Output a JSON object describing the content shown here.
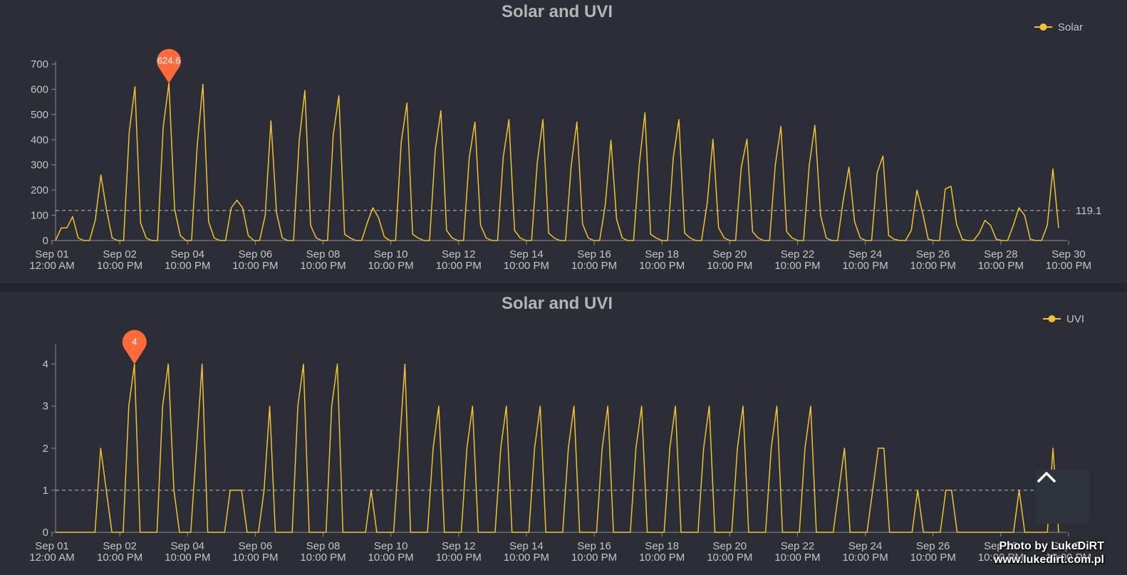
{
  "colors": {
    "line": "#f2c232",
    "marker": "#ff6a3d",
    "axis": "#8c8c8c",
    "mean": "#bdbdbd",
    "bg": "#2b2e36"
  },
  "watermark": {
    "line1": "Photo by LukeDiRT",
    "line2": "www.lukedirt.com.pl"
  },
  "chart_data": [
    {
      "type": "line",
      "title": "Solar and UVI",
      "legend": "top-right",
      "xlabel": "",
      "ylabel": "",
      "ylim": [
        0,
        700
      ],
      "y_ticks": [
        0,
        100,
        200,
        300,
        400,
        500,
        600,
        700
      ],
      "x_ticks": [
        {
          "l1": "Sep 01",
          "l2": "12:00 AM"
        },
        {
          "l1": "Sep 02",
          "l2": "10:00 PM"
        },
        {
          "l1": "Sep 04",
          "l2": "10:00 PM"
        },
        {
          "l1": "Sep 06",
          "l2": "10:00 PM"
        },
        {
          "l1": "Sep 08",
          "l2": "10:00 PM"
        },
        {
          "l1": "Sep 10",
          "l2": "10:00 PM"
        },
        {
          "l1": "Sep 12",
          "l2": "10:00 PM"
        },
        {
          "l1": "Sep 14",
          "l2": "10:00 PM"
        },
        {
          "l1": "Sep 16",
          "l2": "10:00 PM"
        },
        {
          "l1": "Sep 18",
          "l2": "10:00 PM"
        },
        {
          "l1": "Sep 20",
          "l2": "10:00 PM"
        },
        {
          "l1": "Sep 22",
          "l2": "10:00 PM"
        },
        {
          "l1": "Sep 24",
          "l2": "10:00 PM"
        },
        {
          "l1": "Sep 26",
          "l2": "10:00 PM"
        },
        {
          "l1": "Sep 28",
          "l2": "10:00 PM"
        },
        {
          "l1": "Sep 30",
          "l2": "10:00 PM"
        }
      ],
      "mean_line": 119.1,
      "mean_label": "119.1",
      "max_point": {
        "label": "624.6",
        "value": 624.6,
        "index": 20
      },
      "series": [
        {
          "name": "Solar",
          "values": [
            0,
            50,
            50,
            95,
            10,
            0,
            0,
            80,
            260,
            120,
            10,
            0,
            0,
            430,
            610,
            70,
            10,
            0,
            0,
            450,
            624.6,
            125,
            20,
            0,
            0,
            380,
            620,
            75,
            10,
            0,
            0,
            130,
            160,
            130,
            20,
            0,
            0,
            100,
            475,
            110,
            10,
            0,
            0,
            400,
            595,
            60,
            10,
            0,
            0,
            420,
            575,
            25,
            10,
            0,
            0,
            70,
            130,
            90,
            15,
            0,
            0,
            390,
            545,
            25,
            10,
            0,
            0,
            360,
            515,
            40,
            10,
            0,
            0,
            330,
            470,
            60,
            10,
            0,
            0,
            330,
            480,
            40,
            10,
            0,
            0,
            310,
            480,
            30,
            10,
            0,
            0,
            300,
            470,
            65,
            10,
            0,
            0,
            140,
            398,
            85,
            10,
            0,
            0,
            300,
            507,
            25,
            10,
            0,
            0,
            330,
            480,
            30,
            10,
            0,
            0,
            150,
            402,
            50,
            10,
            0,
            0,
            290,
            402,
            35,
            10,
            0,
            0,
            300,
            453,
            35,
            10,
            0,
            0,
            300,
            457,
            100,
            10,
            0,
            0,
            160,
            291,
            75,
            10,
            0,
            0,
            270,
            335,
            20,
            5,
            0,
            0,
            40,
            200,
            110,
            5,
            0,
            0,
            205,
            215,
            65,
            5,
            0,
            0,
            30,
            80,
            60,
            5,
            0,
            0,
            60,
            130,
            100,
            5,
            0,
            0,
            60,
            284,
            50
          ]
        }
      ]
    },
    {
      "type": "line",
      "title": "Solar and UVI",
      "legend": "top-right",
      "xlabel": "",
      "ylabel": "",
      "ylim": [
        0,
        4.4
      ],
      "y_ticks": [
        0,
        1,
        2,
        3,
        4
      ],
      "x_ticks": [
        {
          "l1": "Sep 01",
          "l2": "12:00 AM"
        },
        {
          "l1": "Sep 02",
          "l2": "10:00 PM"
        },
        {
          "l1": "Sep 04",
          "l2": "10:00 PM"
        },
        {
          "l1": "Sep 06",
          "l2": "10:00 PM"
        },
        {
          "l1": "Sep 08",
          "l2": "10:00 PM"
        },
        {
          "l1": "Sep 10",
          "l2": "10:00 PM"
        },
        {
          "l1": "Sep 12",
          "l2": "10:00 PM"
        },
        {
          "l1": "Sep 14",
          "l2": "10:00 PM"
        },
        {
          "l1": "Sep 16",
          "l2": "10:00 PM"
        },
        {
          "l1": "Sep 18",
          "l2": "10:00 PM"
        },
        {
          "l1": "Sep 20",
          "l2": "10:00 PM"
        },
        {
          "l1": "Sep 22",
          "l2": "10:00 PM"
        },
        {
          "l1": "Sep 24",
          "l2": "10:00 PM"
        },
        {
          "l1": "Sep 26",
          "l2": "10:00 PM"
        },
        {
          "l1": "Sep 28",
          "l2": "10:00 PM"
        },
        {
          "l1": "Sep 30",
          "l2": "10:00 PM"
        }
      ],
      "mean_line": 1,
      "mean_label": "1",
      "max_point": {
        "label": "4",
        "value": 4,
        "index": 14
      },
      "series": [
        {
          "name": "UVI",
          "values": [
            0,
            0,
            0,
            0,
            0,
            0,
            0,
            0,
            2,
            1,
            0,
            0,
            0,
            3,
            4,
            0,
            0,
            0,
            0,
            3,
            4,
            1,
            0,
            0,
            0,
            2,
            4,
            0,
            0,
            0,
            0,
            1,
            1,
            1,
            0,
            0,
            0,
            1,
            3,
            0,
            0,
            0,
            0,
            3,
            4,
            0,
            0,
            0,
            0,
            3,
            4,
            0,
            0,
            0,
            0,
            0,
            1,
            0,
            0,
            0,
            0,
            2,
            4,
            0,
            0,
            0,
            0,
            2,
            3,
            0,
            0,
            0,
            0,
            2,
            3,
            0,
            0,
            0,
            0,
            2,
            3,
            0,
            0,
            0,
            0,
            2,
            3,
            0,
            0,
            0,
            0,
            2,
            3,
            0,
            0,
            0,
            0,
            2,
            3,
            0,
            0,
            0,
            0,
            2,
            3,
            0,
            0,
            0,
            0,
            2,
            3,
            0,
            0,
            0,
            0,
            2,
            3,
            0,
            0,
            0,
            0,
            2,
            3,
            0,
            0,
            0,
            0,
            2,
            3,
            0,
            0,
            0,
            0,
            2,
            3,
            0,
            0,
            0,
            0,
            1,
            2,
            0,
            0,
            0,
            0,
            1,
            2,
            2,
            0,
            0,
            0,
            0,
            0,
            1,
            0,
            0,
            0,
            0,
            1,
            1,
            0,
            0,
            0,
            0,
            0,
            0,
            0,
            0,
            0,
            0,
            0,
            1,
            0,
            0,
            0,
            0,
            0,
            2,
            0
          ]
        }
      ]
    }
  ]
}
